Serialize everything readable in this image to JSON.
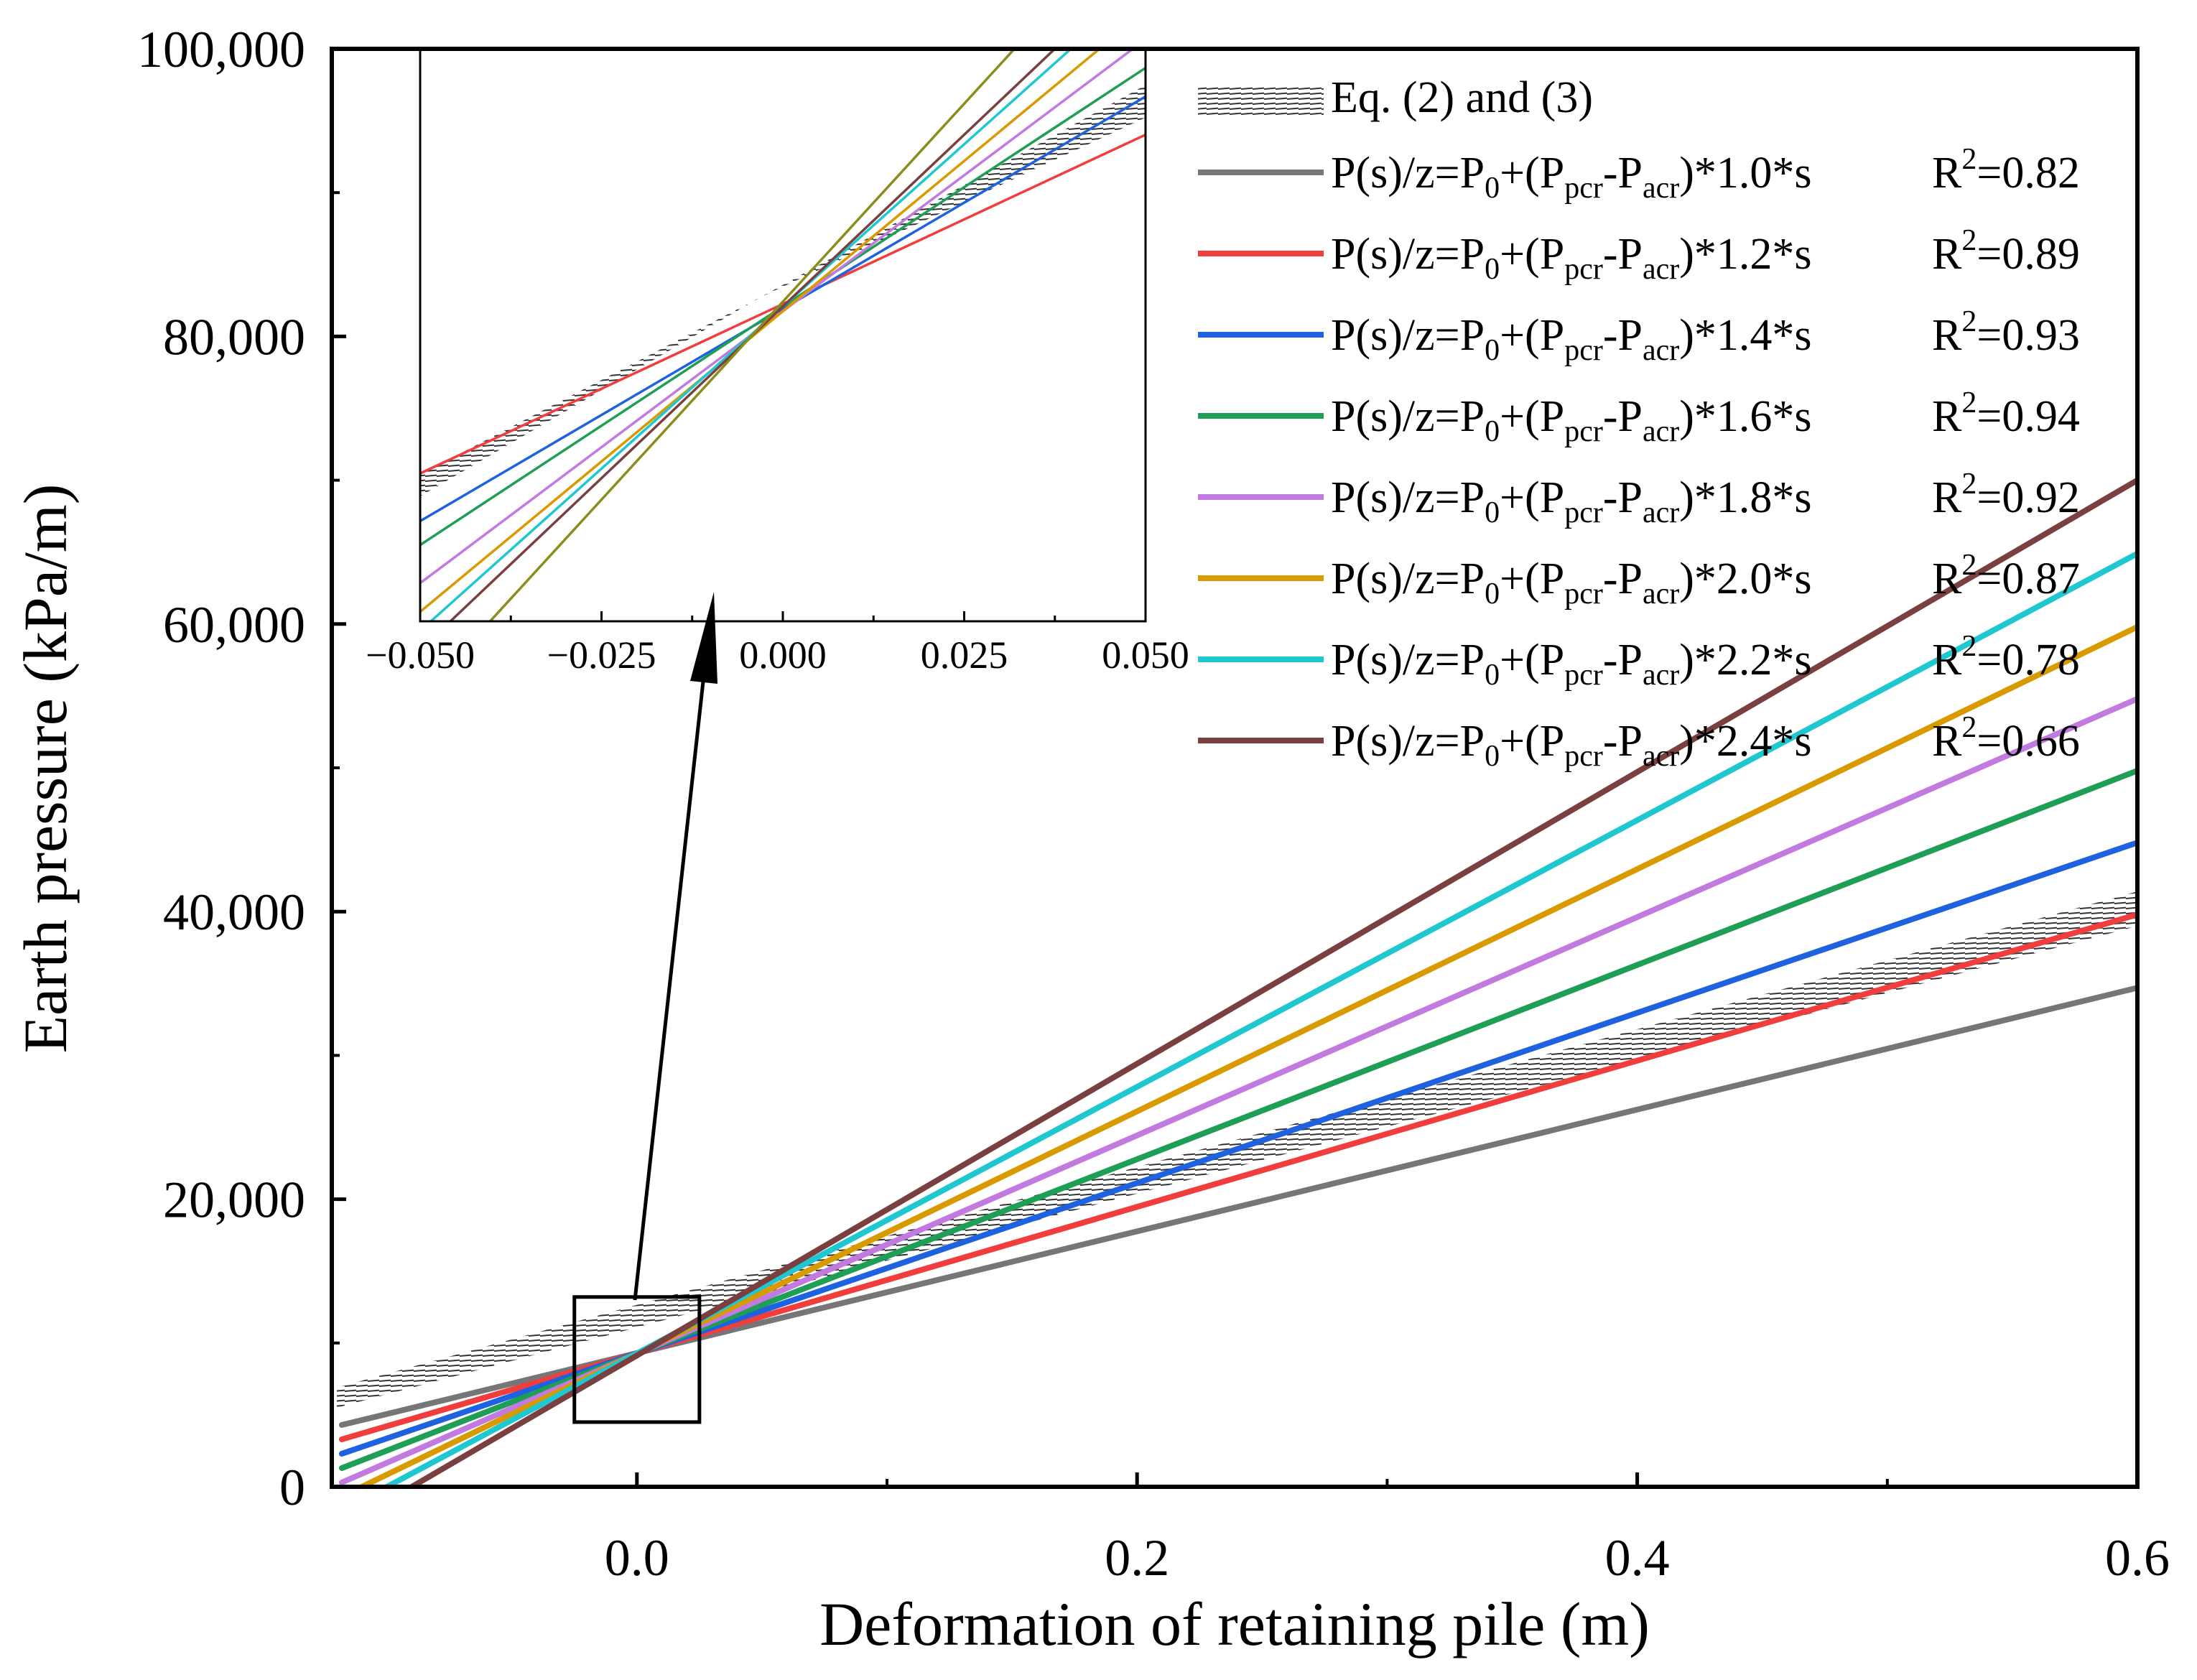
{
  "chart_data": {
    "type": "line",
    "xlabel": "Deformation of retaining pile (m)",
    "ylabel": "Earth pressure (kPa/m)",
    "xlim": [
      -0.122,
      0.6
    ],
    "ylim": [
      0,
      100000
    ],
    "xticks": [
      0.0,
      0.2,
      0.4,
      0.6
    ],
    "xtick_labels": [
      "0.0",
      "0.2",
      "0.4",
      "0.6"
    ],
    "yticks": [
      0,
      20000,
      40000,
      60000,
      80000,
      100000
    ],
    "ytick_labels": [
      "0",
      "20,000",
      "40,000",
      "60,000",
      "80,000",
      "100,000"
    ],
    "grid": false,
    "legend_position": "top-right",
    "band": {
      "name": "Eq. (2) and (3)",
      "x": [
        -0.12,
        0.6
      ],
      "lower": [
        5500,
        39000
      ],
      "upper": [
        6900,
        41400
      ],
      "style": "hatched grey"
    },
    "equation_label": "P(s)/z=P",
    "series": [
      {
        "name": "P(s)/z=P0+(Ppcr-Pacr)*1.0*s",
        "factor": "1.0",
        "r2_label": "R",
        "r2_value": "=0.82",
        "color": "#767676",
        "x": [
          -0.118,
          0.6
        ],
        "y": [
          4300,
          34700
        ]
      },
      {
        "name": "P(s)/z=P0+(Ppcr-Pacr)*1.2*s",
        "factor": "1.2",
        "r2_label": "R",
        "r2_value": "=0.89",
        "color": "#f23d3d",
        "x": [
          -0.118,
          0.6
        ],
        "y": [
          3300,
          39800
        ]
      },
      {
        "name": "P(s)/z=P0+(Ppcr-Pacr)*1.4*s",
        "factor": "1.4",
        "r2_label": "R",
        "r2_value": "=0.93",
        "color": "#1f62e0",
        "x": [
          -0.118,
          0.6
        ],
        "y": [
          2300,
          44800
        ]
      },
      {
        "name": "P(s)/z=P0+(Ppcr-Pacr)*1.6*s",
        "factor": "1.6",
        "r2_label": "R",
        "r2_value": "=0.94",
        "color": "#1f9e56",
        "x": [
          -0.118,
          0.6
        ],
        "y": [
          1300,
          49800
        ]
      },
      {
        "name": "P(s)/z=P0+(Ppcr-Pacr)*1.8*s",
        "factor": "1.8",
        "r2_label": "R",
        "r2_value": "=0.92",
        "color": "#c27ae0",
        "x": [
          -0.118,
          0.6
        ],
        "y": [
          300,
          54800
        ]
      },
      {
        "name": "P(s)/z=P0+(Ppcr-Pacr)*2.0*s",
        "factor": "2.0",
        "r2_label": "R",
        "r2_value": "=0.87",
        "color": "#d99a00",
        "x": [
          -0.11,
          0.6
        ],
        "y": [
          0,
          59800
        ]
      },
      {
        "name": "P(s)/z=P0+(Ppcr-Pacr)*2.2*s",
        "factor": "2.2",
        "r2_label": "R",
        "r2_value": "=0.78",
        "color": "#1fc7d1",
        "x": [
          -0.1,
          0.6
        ],
        "y": [
          0,
          64900
        ]
      },
      {
        "name": "P(s)/z=P0+(Ppcr-Pacr)*2.4*s",
        "factor": "2.4",
        "r2_label": "R",
        "r2_value": "=0.66",
        "color": "#7a4040",
        "x": [
          -0.09,
          0.6
        ],
        "y": [
          0,
          70000
        ]
      }
    ],
    "inset": {
      "xlim": [
        -0.05,
        0.05
      ],
      "ylim": [
        6000,
        12000
      ],
      "xticks": [
        -0.05,
        -0.025,
        0.0,
        0.025,
        0.05
      ],
      "xtick_labels": [
        "−0.050",
        "−0.025",
        "0.000",
        "0.025",
        "0.050"
      ],
      "pivot": [
        -0.003,
        9400
      ],
      "band": {
        "left": [
          7310,
          7540
        ],
        "right": [
          11280,
          11620
        ]
      },
      "series_ends": [
        {
          "color": "#f23d3d",
          "left": 7550,
          "right": 11100
        },
        {
          "color": "#1f62e0",
          "left": 7050,
          "right": 11500
        },
        {
          "color": "#1f9e56",
          "left": 6800,
          "right": 11800
        },
        {
          "color": "#c27ae0",
          "left": 6400,
          "right": 12100
        },
        {
          "color": "#d99a00",
          "left": 6100,
          "right": 12400
        },
        {
          "color": "#1fc7d1",
          "left": 5900,
          "right": 12700
        },
        {
          "color": "#7a4040",
          "left": 5700,
          "right": 12900
        },
        {
          "color": "#8c8c1a",
          "left": 5200,
          "right": 13500
        }
      ]
    },
    "zoom_box": {
      "x": [
        -0.025,
        0.025
      ],
      "y": [
        4500,
        13200
      ]
    }
  }
}
